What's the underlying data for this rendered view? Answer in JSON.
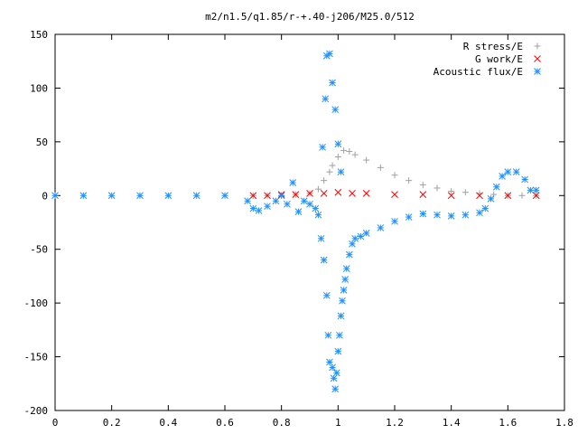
{
  "chart_data": {
    "type": "scatter",
    "title": "m2/n1.5/q1.85/r-+.40-j206/M25.0/512",
    "xlabel": "",
    "ylabel": "",
    "xlim": [
      0,
      1.8
    ],
    "ylim": [
      -200,
      150
    ],
    "x_ticks": [
      0,
      0.2,
      0.4,
      0.6,
      0.8,
      1,
      1.2,
      1.4,
      1.6,
      1.8
    ],
    "x_tick_labels": [
      "0",
      "0.2",
      "0.4",
      "0.6",
      "0.8",
      "1",
      "1.2",
      "1.4",
      "1.6",
      "1.8"
    ],
    "y_ticks": [
      -200,
      -150,
      -100,
      -50,
      0,
      50,
      100,
      150
    ],
    "y_tick_labels": [
      "-200",
      "-150",
      "-100",
      "-50",
      "0",
      "50",
      "100",
      "150"
    ],
    "grid": false,
    "legend_position": "top-right",
    "series": [
      {
        "name": "R stress/E",
        "marker": "+",
        "color": "#a0a0a0",
        "points": [
          [
            0.7,
            0
          ],
          [
            0.75,
            0
          ],
          [
            0.8,
            0
          ],
          [
            0.85,
            1
          ],
          [
            0.9,
            2
          ],
          [
            0.93,
            6
          ],
          [
            0.95,
            14
          ],
          [
            0.97,
            22
          ],
          [
            0.98,
            28
          ],
          [
            1.0,
            36
          ],
          [
            1.02,
            42
          ],
          [
            1.04,
            41
          ],
          [
            1.06,
            38
          ],
          [
            1.1,
            33
          ],
          [
            1.15,
            26
          ],
          [
            1.2,
            19
          ],
          [
            1.25,
            14
          ],
          [
            1.3,
            10
          ],
          [
            1.35,
            7
          ],
          [
            1.4,
            4
          ],
          [
            1.45,
            3
          ],
          [
            1.5,
            2
          ],
          [
            1.55,
            1
          ],
          [
            1.6,
            0
          ],
          [
            1.65,
            0
          ],
          [
            1.7,
            0
          ]
        ]
      },
      {
        "name": "G work/E",
        "marker": "x",
        "color": "#ff0000",
        "points": [
          [
            0.7,
            0
          ],
          [
            0.75,
            0
          ],
          [
            0.8,
            1
          ],
          [
            0.85,
            1
          ],
          [
            0.9,
            2
          ],
          [
            0.95,
            2
          ],
          [
            1.0,
            3
          ],
          [
            1.05,
            2
          ],
          [
            1.1,
            2
          ],
          [
            1.2,
            1
          ],
          [
            1.3,
            1
          ],
          [
            1.4,
            0
          ],
          [
            1.5,
            0
          ],
          [
            1.6,
            0
          ],
          [
            1.7,
            0
          ]
        ]
      },
      {
        "name": "Acoustic flux/E",
        "marker": "*",
        "color": "#1e90ff",
        "points": [
          [
            0.0,
            0
          ],
          [
            0.1,
            0
          ],
          [
            0.2,
            0
          ],
          [
            0.3,
            0
          ],
          [
            0.4,
            0
          ],
          [
            0.5,
            0
          ],
          [
            0.6,
            0
          ],
          [
            0.68,
            -5
          ],
          [
            0.7,
            -12
          ],
          [
            0.72,
            -14
          ],
          [
            0.75,
            -10
          ],
          [
            0.78,
            -5
          ],
          [
            0.8,
            0
          ],
          [
            0.82,
            -8
          ],
          [
            0.84,
            12
          ],
          [
            0.86,
            -15
          ],
          [
            0.88,
            -5
          ],
          [
            0.9,
            -8
          ],
          [
            0.92,
            -12
          ],
          [
            0.93,
            -18
          ],
          [
            0.94,
            -40
          ],
          [
            0.95,
            -60
          ],
          [
            0.96,
            -93
          ],
          [
            0.965,
            -130
          ],
          [
            0.97,
            -155
          ],
          [
            0.98,
            -160
          ],
          [
            0.985,
            -170
          ],
          [
            0.99,
            -180
          ],
          [
            0.995,
            -165
          ],
          [
            1.0,
            -145
          ],
          [
            1.005,
            -130
          ],
          [
            1.01,
            -112
          ],
          [
            1.015,
            -98
          ],
          [
            1.02,
            -88
          ],
          [
            1.025,
            -78
          ],
          [
            1.03,
            -68
          ],
          [
            1.04,
            -55
          ],
          [
            1.05,
            -45
          ],
          [
            1.06,
            -40
          ],
          [
            1.08,
            -38
          ],
          [
            1.1,
            -35
          ],
          [
            1.15,
            -30
          ],
          [
            1.2,
            -24
          ],
          [
            1.25,
            -20
          ],
          [
            1.3,
            -17
          ],
          [
            1.35,
            -18
          ],
          [
            1.4,
            -19
          ],
          [
            1.45,
            -18
          ],
          [
            1.5,
            -16
          ],
          [
            1.52,
            -12
          ],
          [
            1.54,
            -3
          ],
          [
            1.56,
            8
          ],
          [
            1.58,
            18
          ],
          [
            1.6,
            22
          ],
          [
            1.63,
            22
          ],
          [
            1.66,
            15
          ],
          [
            1.68,
            5
          ],
          [
            1.7,
            5
          ],
          [
            0.945,
            45
          ],
          [
            0.955,
            90
          ],
          [
            0.96,
            130
          ],
          [
            0.97,
            132
          ],
          [
            0.98,
            105
          ],
          [
            0.99,
            80
          ],
          [
            1.0,
            48
          ],
          [
            1.01,
            22
          ]
        ]
      }
    ]
  }
}
